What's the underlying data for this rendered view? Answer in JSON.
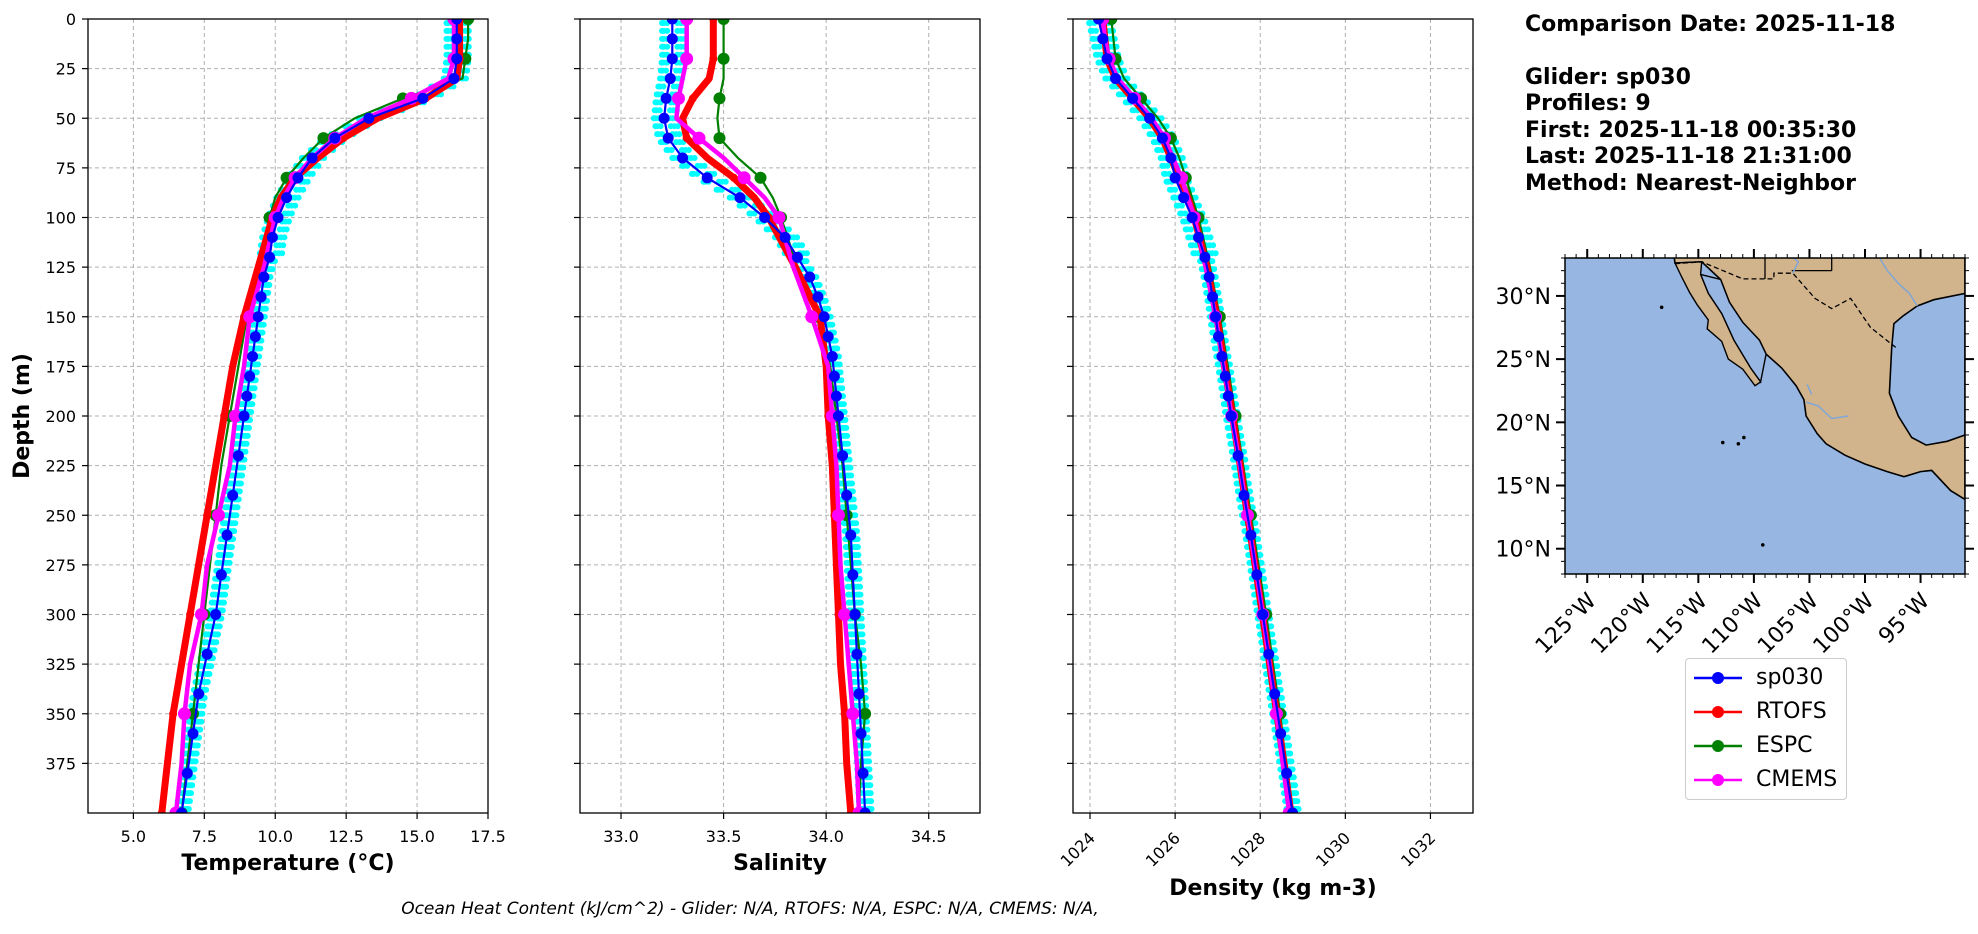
{
  "info": {
    "comparison_date": "Comparison Date: 2025-11-18",
    "glider": "Glider: sp030",
    "profiles": "Profiles: 9",
    "first": "First: 2025-11-18 00:35:30",
    "last": "Last: 2025-11-18 21:31:00",
    "method": "Method: Nearest-Neighbor"
  },
  "footer": "Ocean Heat Content (kJ/cm^2) - Glider: N/A,  RTOFS: N/A,  ESPC: N/A,  CMEMS: N/A,",
  "colors": {
    "sp030": "#0000ff",
    "glider_raw": "#00ffff",
    "RTOFS": "#ff0000",
    "ESPC": "#008000",
    "CMEMS": "#ff00ff",
    "ocean": "#97b6e1",
    "land": "#d2b48c",
    "grid": "#b0b0b0"
  },
  "legend": [
    "sp030",
    "RTOFS",
    "ESPC",
    "CMEMS"
  ],
  "chart_data": [
    {
      "type": "line",
      "id": "temperature",
      "xlabel": "Temperature (°C)",
      "ylabel": "Depth (m)",
      "xlim": [
        3.4,
        17.5
      ],
      "ylim": [
        400,
        0
      ],
      "xticks": [
        "5.0",
        "7.5",
        "10.0",
        "12.5",
        "15.0",
        "17.5"
      ],
      "xtick_values": [
        5.0,
        7.5,
        10.0,
        12.5,
        15.0,
        17.5
      ],
      "yticks": [
        "0",
        "25",
        "50",
        "75",
        "100",
        "125",
        "150",
        "175",
        "200",
        "225",
        "250",
        "275",
        "300",
        "325",
        "350",
        "375"
      ],
      "ytick_values": [
        0,
        25,
        50,
        75,
        100,
        125,
        150,
        175,
        200,
        225,
        250,
        275,
        300,
        325,
        350,
        375
      ],
      "grid": true,
      "series": [
        {
          "name": "sp030",
          "depth": [
            0,
            10,
            20,
            30,
            40,
            50,
            60,
            70,
            80,
            90,
            100,
            110,
            120,
            130,
            140,
            150,
            160,
            170,
            180,
            190,
            200,
            220,
            240,
            260,
            280,
            300,
            320,
            340,
            360,
            380,
            400
          ],
          "values": [
            16.4,
            16.4,
            16.4,
            16.3,
            15.2,
            13.3,
            12.1,
            11.3,
            10.8,
            10.4,
            10.1,
            9.9,
            9.8,
            9.6,
            9.5,
            9.4,
            9.3,
            9.2,
            9.1,
            9.0,
            8.9,
            8.7,
            8.5,
            8.3,
            8.1,
            7.9,
            7.6,
            7.3,
            7.1,
            6.9,
            6.7
          ]
        },
        {
          "name": "RTOFS",
          "depth": [
            0,
            10,
            20,
            30,
            40,
            50,
            60,
            70,
            80,
            90,
            100,
            125,
            150,
            175,
            200,
            225,
            250,
            275,
            300,
            325,
            350,
            375,
            400
          ],
          "values": [
            16.5,
            16.5,
            16.5,
            16.4,
            15.3,
            13.6,
            12.4,
            11.5,
            10.7,
            10.2,
            9.9,
            9.4,
            8.9,
            8.5,
            8.2,
            7.9,
            7.6,
            7.3,
            7.0,
            6.7,
            6.4,
            6.2,
            6.0
          ]
        },
        {
          "name": "ESPC",
          "depth": [
            0,
            10,
            20,
            30,
            40,
            50,
            60,
            70,
            80,
            90,
            100,
            125,
            150,
            175,
            200,
            225,
            250,
            275,
            300,
            325,
            350,
            375,
            400
          ],
          "values": [
            16.8,
            16.8,
            16.7,
            16.6,
            14.5,
            12.8,
            11.7,
            11.0,
            10.4,
            10.0,
            9.8,
            9.4,
            9.0,
            8.7,
            8.4,
            8.1,
            7.9,
            7.7,
            7.5,
            7.3,
            7.1,
            6.9,
            6.7
          ]
        },
        {
          "name": "CMEMS",
          "depth": [
            0,
            10,
            20,
            30,
            40,
            50,
            60,
            70,
            80,
            90,
            100,
            125,
            150,
            175,
            200,
            225,
            250,
            275,
            300,
            325,
            350,
            375,
            400
          ],
          "values": [
            16.3,
            16.3,
            16.3,
            16.1,
            14.8,
            13.2,
            12.1,
            11.3,
            10.7,
            10.3,
            10.0,
            9.6,
            9.1,
            8.9,
            8.6,
            8.4,
            8.0,
            7.6,
            7.4,
            7.0,
            6.8,
            6.7,
            6.5
          ]
        }
      ]
    },
    {
      "type": "line",
      "id": "salinity",
      "xlabel": "Salinity",
      "xlim": [
        32.8,
        34.75
      ],
      "ylim": [
        400,
        0
      ],
      "xticks": [
        "33.0",
        "33.5",
        "34.0",
        "34.5"
      ],
      "xtick_values": [
        33.0,
        33.5,
        34.0,
        34.5
      ],
      "grid": true,
      "series": [
        {
          "name": "sp030",
          "depth": [
            0,
            10,
            20,
            30,
            40,
            50,
            60,
            70,
            80,
            90,
            100,
            110,
            120,
            130,
            140,
            150,
            160,
            170,
            180,
            190,
            200,
            220,
            240,
            260,
            280,
            300,
            320,
            340,
            360,
            380,
            400
          ],
          "values": [
            33.25,
            33.25,
            33.25,
            33.24,
            33.22,
            33.21,
            33.23,
            33.3,
            33.42,
            33.58,
            33.7,
            33.8,
            33.86,
            33.92,
            33.96,
            33.99,
            34.01,
            34.03,
            34.04,
            34.05,
            34.06,
            34.08,
            34.1,
            34.12,
            34.13,
            34.14,
            34.15,
            34.16,
            34.17,
            34.18,
            34.19
          ]
        },
        {
          "name": "RTOFS",
          "depth": [
            0,
            10,
            20,
            30,
            40,
            50,
            60,
            70,
            80,
            90,
            100,
            125,
            150,
            175,
            200,
            225,
            250,
            275,
            300,
            325,
            350,
            375,
            400
          ],
          "values": [
            33.45,
            33.45,
            33.45,
            33.43,
            33.35,
            33.3,
            33.32,
            33.42,
            33.55,
            33.65,
            33.72,
            33.85,
            33.97,
            34.0,
            34.01,
            34.03,
            34.04,
            34.05,
            34.06,
            34.07,
            34.09,
            34.1,
            34.12
          ]
        },
        {
          "name": "ESPC",
          "depth": [
            0,
            10,
            20,
            30,
            40,
            50,
            60,
            70,
            80,
            90,
            100,
            125,
            150,
            175,
            200,
            225,
            250,
            275,
            300,
            325,
            350,
            375,
            400
          ],
          "values": [
            33.5,
            33.5,
            33.5,
            33.5,
            33.48,
            33.47,
            33.48,
            33.57,
            33.68,
            33.74,
            33.78,
            33.86,
            33.96,
            34.02,
            34.05,
            34.08,
            34.1,
            34.12,
            34.14,
            34.17,
            34.19,
            34.17,
            34.16
          ]
        },
        {
          "name": "CMEMS",
          "depth": [
            0,
            10,
            20,
            30,
            40,
            50,
            60,
            70,
            80,
            90,
            100,
            125,
            150,
            175,
            200,
            225,
            250,
            275,
            300,
            325,
            350,
            375,
            400
          ],
          "values": [
            33.32,
            33.32,
            33.32,
            33.3,
            33.28,
            33.27,
            33.38,
            33.5,
            33.6,
            33.7,
            33.77,
            33.84,
            33.93,
            34.01,
            34.03,
            34.05,
            34.06,
            34.07,
            34.09,
            34.11,
            34.13,
            34.15,
            34.16
          ]
        }
      ]
    },
    {
      "type": "line",
      "id": "density",
      "xlabel": "Density (kg m-3)",
      "xlim": [
        1023.6,
        1033.0
      ],
      "ylim": [
        400,
        0
      ],
      "xticks": [
        "1024",
        "1026",
        "1028",
        "1030",
        "1032"
      ],
      "xtick_values": [
        1024,
        1026,
        1028,
        1030,
        1032
      ],
      "grid": true,
      "series": [
        {
          "name": "sp030",
          "depth": [
            0,
            10,
            20,
            30,
            40,
            50,
            60,
            70,
            80,
            90,
            100,
            110,
            120,
            130,
            140,
            150,
            160,
            170,
            180,
            190,
            200,
            220,
            240,
            260,
            280,
            300,
            320,
            340,
            360,
            380,
            400
          ],
          "values": [
            1024.2,
            1024.3,
            1024.4,
            1024.6,
            1025.0,
            1025.4,
            1025.7,
            1025.9,
            1026.0,
            1026.2,
            1026.4,
            1026.55,
            1026.7,
            1026.8,
            1026.88,
            1026.95,
            1027.02,
            1027.1,
            1027.18,
            1027.25,
            1027.32,
            1027.48,
            1027.62,
            1027.78,
            1027.92,
            1028.06,
            1028.2,
            1028.34,
            1028.48,
            1028.62,
            1028.76
          ]
        },
        {
          "name": "RTOFS",
          "depth": [
            0,
            10,
            20,
            30,
            40,
            50,
            60,
            70,
            80,
            90,
            100,
            125,
            150,
            175,
            200,
            225,
            250,
            275,
            300,
            325,
            350,
            375,
            400
          ],
          "values": [
            1024.3,
            1024.35,
            1024.4,
            1024.6,
            1025.0,
            1025.4,
            1025.7,
            1025.9,
            1026.1,
            1026.3,
            1026.45,
            1026.75,
            1026.98,
            1027.16,
            1027.35,
            1027.53,
            1027.7,
            1027.88,
            1028.05,
            1028.22,
            1028.39,
            1028.56,
            1028.72
          ]
        },
        {
          "name": "ESPC",
          "depth": [
            0,
            10,
            20,
            30,
            40,
            50,
            60,
            70,
            80,
            90,
            100,
            125,
            150,
            175,
            200,
            225,
            250,
            275,
            300,
            325,
            350,
            375,
            400
          ],
          "values": [
            1024.5,
            1024.55,
            1024.6,
            1024.8,
            1025.2,
            1025.6,
            1025.9,
            1026.1,
            1026.25,
            1026.4,
            1026.55,
            1026.82,
            1027.05,
            1027.24,
            1027.42,
            1027.6,
            1027.78,
            1027.96,
            1028.14,
            1028.3,
            1028.47,
            1028.6,
            1028.74
          ]
        },
        {
          "name": "CMEMS",
          "depth": [
            0,
            10,
            20,
            30,
            40,
            50,
            60,
            70,
            80,
            90,
            100,
            125,
            150,
            175,
            200,
            225,
            250,
            275,
            300,
            325,
            350,
            375,
            400
          ],
          "values": [
            1024.3,
            1024.35,
            1024.45,
            1024.65,
            1025.05,
            1025.45,
            1025.75,
            1025.95,
            1026.15,
            1026.3,
            1026.45,
            1026.72,
            1026.95,
            1027.14,
            1027.33,
            1027.52,
            1027.7,
            1027.88,
            1028.06,
            1028.22,
            1028.38,
            1028.53,
            1028.68
          ]
        }
      ]
    },
    {
      "type": "map",
      "id": "location-map",
      "xlim": [
        -127,
        -91
      ],
      "ylim": [
        8,
        33
      ],
      "xticks": [
        "125°W",
        "120°W",
        "115°W",
        "110°W",
        "105°W",
        "100°W",
        "95°W"
      ],
      "xtick_values": [
        -125,
        -120,
        -115,
        -110,
        -105,
        -100,
        -95
      ],
      "yticks": [
        "30°N",
        "25°N",
        "20°N",
        "15°N",
        "10°N"
      ],
      "ytick_values": [
        30,
        25,
        20,
        15,
        10
      ]
    }
  ]
}
